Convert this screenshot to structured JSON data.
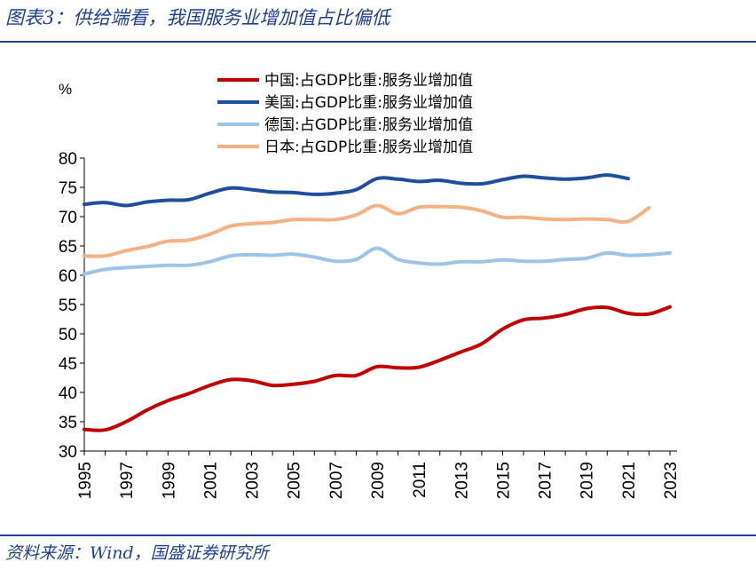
{
  "title": "图表3：供给端看，我国服务业增加值占比偏低",
  "source": "资料来源：Wind，国盛证券研究所",
  "chart_data": {
    "type": "line",
    "unit_label": "%",
    "ylim": [
      30,
      80
    ],
    "yticks": [
      30,
      35,
      40,
      45,
      50,
      55,
      60,
      65,
      70,
      75,
      80
    ],
    "xlim": [
      1995,
      2023
    ],
    "xticks": [
      "1995",
      "1997",
      "1999",
      "2001",
      "2003",
      "2005",
      "2007",
      "2009",
      "2011",
      "2013",
      "2015",
      "2017",
      "2019",
      "2021",
      "2023"
    ],
    "legend_position": "top",
    "grid": false,
    "x": [
      1995,
      1996,
      1997,
      1998,
      1999,
      2000,
      2001,
      2002,
      2003,
      2004,
      2005,
      2006,
      2007,
      2008,
      2009,
      2010,
      2011,
      2012,
      2013,
      2014,
      2015,
      2016,
      2017,
      2018,
      2019,
      2020,
      2021,
      2022,
      2023
    ],
    "series": [
      {
        "name": "中国:占GDP比重:服务业增加值",
        "color": "#c00000",
        "values": [
          33.7,
          33.6,
          35.0,
          37.0,
          38.6,
          39.8,
          41.2,
          42.2,
          42.0,
          41.2,
          41.4,
          41.9,
          42.9,
          42.9,
          44.4,
          44.2,
          44.3,
          45.5,
          46.9,
          48.3,
          50.8,
          52.4,
          52.7,
          53.3,
          54.3,
          54.5,
          53.5,
          53.4,
          54.6
        ]
      },
      {
        "name": "美国:占GDP比重:服务业增加值",
        "color": "#1f4e9c",
        "values": [
          72.1,
          72.4,
          71.9,
          72.5,
          72.8,
          72.9,
          74.0,
          74.9,
          74.6,
          74.2,
          74.1,
          73.8,
          74.0,
          74.6,
          76.5,
          76.4,
          76.0,
          76.2,
          75.7,
          75.6,
          76.3,
          76.9,
          76.6,
          76.4,
          76.6,
          77.1,
          76.5,
          null,
          null
        ]
      },
      {
        "name": "德国:占GDP比重:服务业增加值",
        "color": "#9dc3e6",
        "values": [
          60.2,
          61.0,
          61.3,
          61.5,
          61.7,
          61.7,
          62.3,
          63.3,
          63.5,
          63.4,
          63.6,
          63.1,
          62.4,
          62.7,
          64.6,
          62.7,
          62.1,
          61.9,
          62.3,
          62.3,
          62.6,
          62.4,
          62.4,
          62.7,
          62.9,
          63.8,
          63.4,
          63.5,
          63.8
        ]
      },
      {
        "name": "日本:占GDP比重:服务业增加值",
        "color": "#f4b183",
        "values": [
          63.3,
          63.3,
          64.2,
          64.9,
          65.8,
          66.0,
          67.0,
          68.4,
          68.8,
          69.0,
          69.5,
          69.5,
          69.5,
          70.3,
          71.9,
          70.5,
          71.6,
          71.7,
          71.6,
          71.0,
          69.9,
          69.9,
          69.6,
          69.5,
          69.6,
          69.5,
          69.2,
          71.5,
          null
        ]
      }
    ]
  }
}
